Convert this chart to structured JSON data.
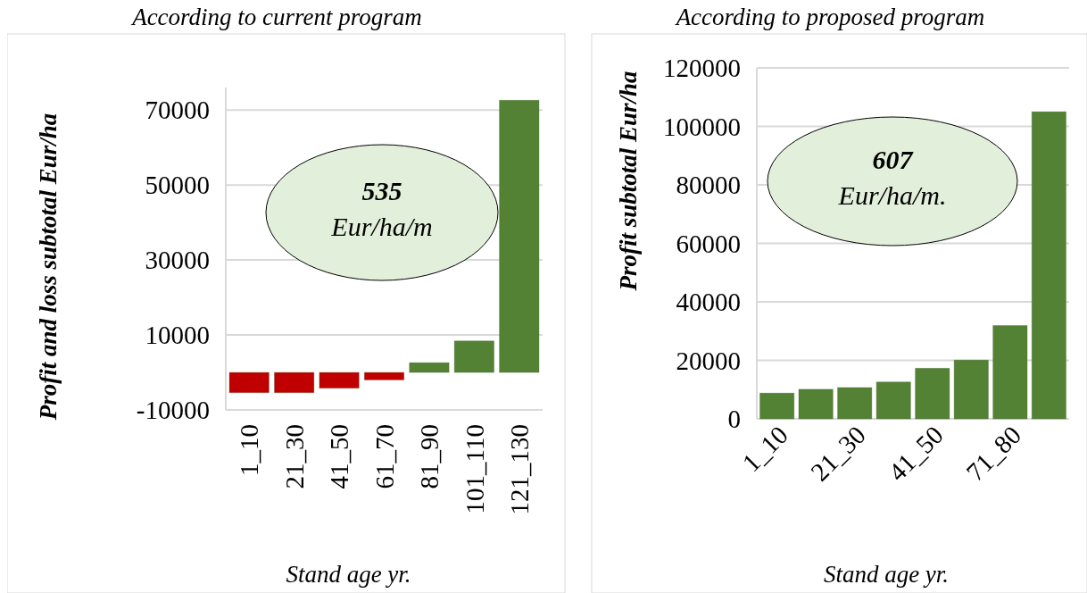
{
  "chart_data": [
    {
      "type": "bar",
      "title": "According to current program",
      "xlabel": "Stand age yr.",
      "ylabel": "Profit  and loss  subtotal Eur/ha",
      "categories": [
        "1_10",
        "21_30",
        "41_50",
        "61_70",
        "81_90",
        "101_110",
        "121_130"
      ],
      "values": [
        -5400,
        -5400,
        -4200,
        -2000,
        2600,
        8400,
        72600
      ],
      "colors": [
        "#c00000",
        "#c00000",
        "#c00000",
        "#c00000",
        "#548235",
        "#548235",
        "#548235"
      ],
      "ylim": [
        -10000,
        76000
      ],
      "yticks": [
        -10000,
        10000,
        30000,
        50000,
        70000
      ],
      "grid": "y",
      "annotations": [
        "535",
        "Eur/ha/m"
      ]
    },
    {
      "type": "bar",
      "title": "According to proposed program",
      "xlabel": "Stand age yr.",
      "ylabel": "Profit subtotal Eur/ha",
      "categories": [
        "1_10",
        null,
        "21_30",
        null,
        "41_50",
        null,
        "71_80",
        null
      ],
      "values": [
        8800,
        10100,
        10700,
        12600,
        17300,
        20100,
        31900,
        105000
      ],
      "colors": [
        "#548235",
        "#548235",
        "#548235",
        "#548235",
        "#548235",
        "#548235",
        "#548235",
        "#548235"
      ],
      "ylim": [
        0,
        120000
      ],
      "yticks": [
        0,
        20000,
        40000,
        60000,
        80000,
        100000,
        120000
      ],
      "grid": "y",
      "annotations": [
        "607",
        "Eur/ha/m."
      ]
    }
  ]
}
